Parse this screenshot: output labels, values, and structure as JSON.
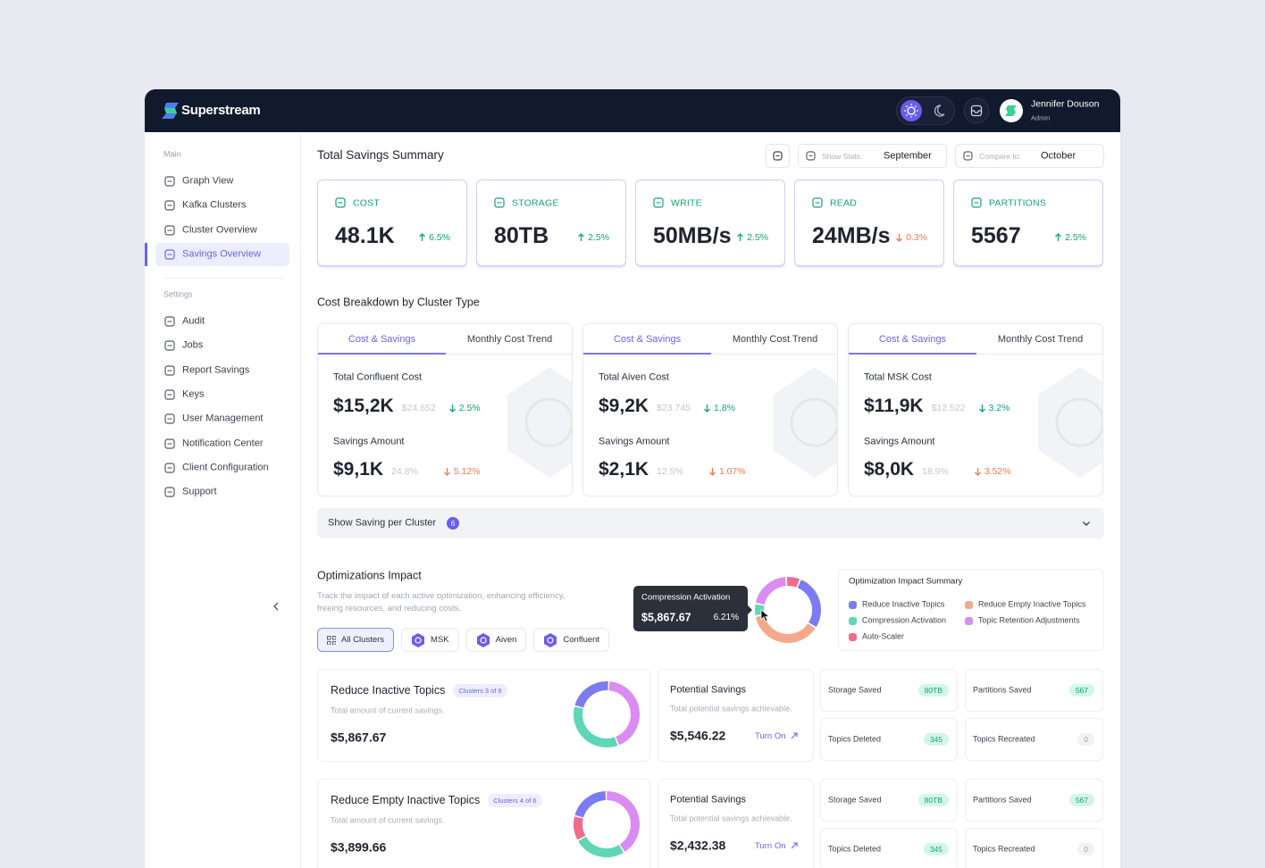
{
  "header": {
    "brand": "Superstream",
    "user": {
      "name": "Jennifer Douson",
      "role": "Admin"
    }
  },
  "sidebar": {
    "sections": [
      {
        "label": "Main",
        "items": [
          "Graph View",
          "Kafka Clusters",
          "Cluster Overview",
          "Savings Overview"
        ]
      },
      {
        "label": "Settings",
        "items": [
          "Audit",
          "Jobs",
          "Report Savings",
          "Keys",
          "User Management",
          "Notification Center",
          "Client Configuration",
          "Support"
        ]
      }
    ],
    "active": "Savings Overview"
  },
  "summary": {
    "title": "Total Savings Summary",
    "filters": [
      {
        "label": "Show Stats:",
        "value": "September"
      },
      {
        "label": "Compare to:",
        "value": "October"
      }
    ],
    "kpis": [
      {
        "label": "COST",
        "value": "48.1K",
        "change": "6.5%",
        "direction": "up",
        "tone": "positive"
      },
      {
        "label": "STORAGE",
        "value": "80TB",
        "change": "2.5%",
        "direction": "up",
        "tone": "positive"
      },
      {
        "label": "WRITE",
        "value": "50MB/s",
        "change": "2.5%",
        "direction": "up",
        "tone": "positive"
      },
      {
        "label": "READ",
        "value": "24MB/s",
        "change": "0.3%",
        "direction": "down",
        "tone": "negative"
      },
      {
        "label": "PARTITIONS",
        "value": "5567",
        "change": "2.5%",
        "direction": "up",
        "tone": "positive"
      }
    ]
  },
  "breakdown": {
    "title": "Cost Breakdown by Cluster Type",
    "cards": [
      {
        "tabs": [
          "Cost & Savings",
          "Monthly Cost Trend"
        ],
        "active_tab": 0,
        "cost": {
          "label": "Total Confluent Cost",
          "value": "$15,2K",
          "previous": "$24.652",
          "change": "2.5%",
          "direction": "down",
          "tone": "positive"
        },
        "savings": {
          "label": "Savings Amount",
          "value": "$9,1K",
          "share": "24.8%",
          "change": "5.12%",
          "direction": "down",
          "tone": "negative"
        }
      },
      {
        "tabs": [
          "Cost & Savings",
          "Monthly Cost Trend"
        ],
        "active_tab": 0,
        "cost": {
          "label": "Total Aiven Cost",
          "value": "$9,2K",
          "previous": "$23.745",
          "change": "1.8%",
          "direction": "down",
          "tone": "positive"
        },
        "savings": {
          "label": "Savings Amount",
          "value": "$2,1K",
          "share": "12.5%",
          "change": "1.07%",
          "direction": "down",
          "tone": "negative"
        }
      },
      {
        "tabs": [
          "Cost & Savings",
          "Monthly Cost Trend"
        ],
        "active_tab": 0,
        "cost": {
          "label": "Total MSK Cost",
          "value": "$11,9K",
          "previous": "$12.522",
          "change": "3.2%",
          "direction": "down",
          "tone": "positive"
        },
        "savings": {
          "label": "Savings Amount",
          "value": "$8,0K",
          "share": "18.9%",
          "change": "3.52%",
          "direction": "down",
          "tone": "negative"
        }
      }
    ]
  },
  "collapsible": {
    "label": "Show Saving per Cluster",
    "count": 6
  },
  "optimizations": {
    "title": "Optimizations Impact",
    "description": "Track the impact of each active optimization, enhancing efficiency, freeing resources, and reducing costs.",
    "filters": [
      "All Clusters",
      "MSK",
      "Aiven",
      "Confluent"
    ],
    "active_filter": 0,
    "tooltip": {
      "name": "Compression Activation",
      "amount": "$5,867.67",
      "percent": "6.21%"
    },
    "chart": {
      "type": "donut",
      "series": [
        {
          "name": "Reduce Inactive Topics",
          "color": "#7b7cf3",
          "value": 28
        },
        {
          "name": "Reduce Empty Inactive Topics",
          "color": "#f5a98c",
          "value": 38
        },
        {
          "name": "Compression Activation",
          "color": "#5fd6b6",
          "value": 6.21
        },
        {
          "name": "Topic Retention Adjustments",
          "color": "#da8cf2",
          "value": 21
        },
        {
          "name": "Auto-Scaler",
          "color": "#ee6d8c",
          "value": 7
        }
      ]
    },
    "legend": {
      "title": "Optimization Impact Summary"
    }
  },
  "rows": [
    {
      "title": "Reduce Inactive Topics",
      "badge": "Clusters 3 of 6",
      "subtitle": "Total amount of current savings.",
      "amount": "$5,867.67",
      "donut": [
        {
          "color": "#7b7cf3",
          "value": 22
        },
        {
          "color": "#da8cf2",
          "value": 43
        },
        {
          "color": "#5fd6b6",
          "value": 35
        }
      ],
      "potential": {
        "title": "Potential Savings",
        "subtitle": "Total potential savings achievable.",
        "amount": "$5,546.22",
        "action": "Turn On"
      },
      "stats": [
        {
          "label": "Storage Saved",
          "value": "80TB"
        },
        {
          "label": "Partitions Saved",
          "value": 567
        },
        {
          "label": "Topics Deleted",
          "value": 345
        },
        {
          "label": "Topics Recreated",
          "value": 0
        }
      ]
    },
    {
      "title": "Reduce Empty Inactive Topics",
      "badge": "Clusters 4 of 6",
      "subtitle": "Total amount of current savings.",
      "amount": "$3,899.66",
      "donut": [
        {
          "color": "#7b7cf3",
          "value": 20
        },
        {
          "color": "#da8cf2",
          "value": 40
        },
        {
          "color": "#5fd6b6",
          "value": 25
        },
        {
          "color": "#ee6d8c",
          "value": 12
        }
      ],
      "potential": {
        "title": "Potential Savings",
        "subtitle": "Total potential savings achievable.",
        "amount": "$2,432.38",
        "action": "Turn On"
      },
      "stats": [
        {
          "label": "Storage Saved",
          "value": "80TB"
        },
        {
          "label": "Partitions Saved",
          "value": 567
        },
        {
          "label": "Topics Deleted",
          "value": 345
        },
        {
          "label": "Topics Recreated",
          "value": 0
        }
      ]
    }
  ]
}
